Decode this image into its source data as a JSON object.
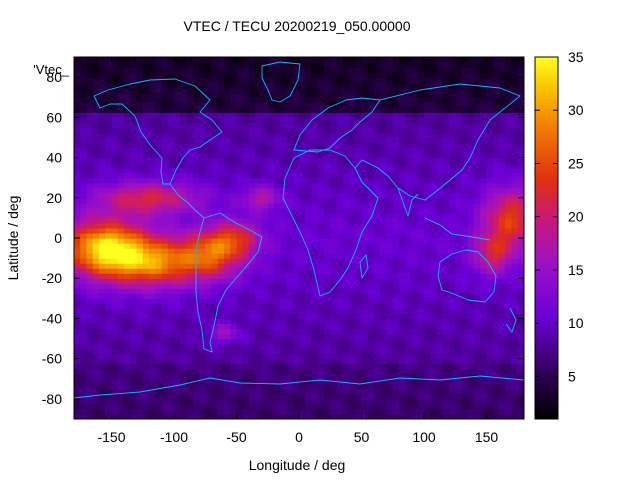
{
  "chart_data": {
    "type": "heatmap",
    "title": "VTEC / TECU 20200219_050.00000",
    "series_label": "'Vtec_",
    "xlabel": "Longitude / deg",
    "ylabel": "Latitude / deg",
    "xlim": [
      -180,
      180
    ],
    "ylim": [
      -90,
      90
    ],
    "x_ticks": [
      -150,
      -100,
      -50,
      0,
      50,
      100,
      150
    ],
    "y_ticks": [
      -80,
      -60,
      -40,
      -20,
      0,
      20,
      40,
      60,
      80
    ],
    "x_tick_labels": [
      "-150",
      "-100",
      "-50",
      "0",
      "50",
      "100",
      "150"
    ],
    "y_tick_labels": [
      "-80",
      "-60",
      "-40",
      "-20",
      "0",
      "20",
      "40",
      "60",
      "80"
    ],
    "colorbar": {
      "min": 1,
      "max": 35,
      "ticks": [
        5,
        10,
        15,
        20,
        25,
        30,
        35
      ],
      "tick_labels": [
        "5",
        "10",
        "15",
        "20",
        "25",
        "30",
        "35"
      ]
    },
    "grid": false,
    "coastline_color": "#00bfff",
    "features": [
      {
        "lon": -155,
        "lat": -5,
        "value": 33,
        "spread_lon": 32,
        "spread_lat": 14
      },
      {
        "lon": -115,
        "lat": -12,
        "value": 27,
        "spread_lon": 35,
        "spread_lat": 12
      },
      {
        "lon": -70,
        "lat": -8,
        "value": 24,
        "spread_lon": 25,
        "spread_lat": 12
      },
      {
        "lon": -50,
        "lat": 0,
        "value": 20,
        "spread_lon": 20,
        "spread_lat": 9
      },
      {
        "lon": -30,
        "lat": 20,
        "value": 18,
        "spread_lon": 15,
        "spread_lat": 6
      },
      {
        "lon": 170,
        "lat": 10,
        "value": 24,
        "spread_lon": 22,
        "spread_lat": 15
      },
      {
        "lon": 155,
        "lat": -8,
        "value": 20,
        "spread_lon": 15,
        "spread_lat": 10
      },
      {
        "lon": -60,
        "lat": -47,
        "value": 17,
        "spread_lon": 12,
        "spread_lat": 5
      },
      {
        "lon": -120,
        "lat": 20,
        "value": 22,
        "spread_lon": 40,
        "spread_lat": 8
      }
    ]
  }
}
